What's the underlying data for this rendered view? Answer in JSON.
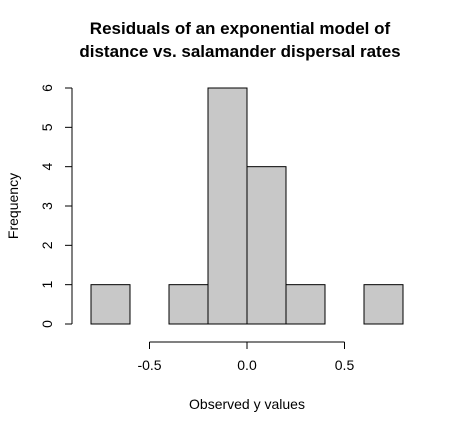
{
  "chart_data": {
    "type": "bar",
    "subtype": "histogram",
    "title": [
      "Residuals of an exponential model of",
      "distance vs. salamander dispersal rates"
    ],
    "xlabel": "Observed y values",
    "ylabel": "Frequency",
    "bin_edges": [
      -0.8,
      -0.6,
      -0.4,
      -0.2,
      0.0,
      0.2,
      0.4,
      0.6,
      0.8
    ],
    "values": [
      1,
      0,
      1,
      6,
      4,
      1,
      0,
      1
    ],
    "xlim": [
      -0.8,
      0.8
    ],
    "ylim": [
      0,
      6
    ],
    "xticks": [
      -0.5,
      0.0,
      0.5
    ],
    "xtick_labels": [
      "-0.5",
      "0.0",
      "0.5"
    ],
    "yticks": [
      0,
      1,
      2,
      3,
      4,
      5,
      6
    ],
    "ytick_labels": [
      "0",
      "1",
      "2",
      "3",
      "4",
      "5",
      "6"
    ],
    "bar_color": "#c8c8c8",
    "grid": false,
    "legend": "none"
  }
}
